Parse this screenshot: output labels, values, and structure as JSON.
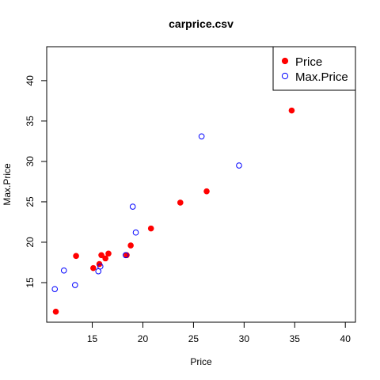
{
  "chart_data": {
    "type": "scatter",
    "title": "carprice.csv",
    "xlabel": "Price",
    "ylabel": "Max.Price",
    "xlim": [
      10.5,
      41
    ],
    "ylim": [
      10.1,
      44.2
    ],
    "x_ticks": [
      15,
      20,
      25,
      30,
      35,
      40
    ],
    "y_ticks": [
      15,
      20,
      25,
      30,
      35,
      40
    ],
    "grid": false,
    "legend_position": "top-right",
    "series": [
      {
        "name": "Price",
        "marker": "filled-circle",
        "color": "#ff0000",
        "points": [
          [
            11.4,
            11.4
          ],
          [
            13.4,
            18.3
          ],
          [
            15.1,
            16.8
          ],
          [
            15.7,
            17.3
          ],
          [
            15.9,
            18.4
          ],
          [
            16.3,
            18.0
          ],
          [
            16.6,
            18.6
          ],
          [
            18.4,
            18.4
          ],
          [
            18.8,
            19.6
          ],
          [
            20.8,
            21.7
          ],
          [
            23.7,
            24.9
          ],
          [
            26.3,
            26.3
          ],
          [
            34.7,
            36.3
          ]
        ]
      },
      {
        "name": "Max.Price",
        "marker": "open-circle",
        "color": "#0000ff",
        "points": [
          [
            11.3,
            14.2
          ],
          [
            12.2,
            16.5
          ],
          [
            13.3,
            14.7
          ],
          [
            15.6,
            16.4
          ],
          [
            15.8,
            17.0
          ],
          [
            18.3,
            18.4
          ],
          [
            19.0,
            24.4
          ],
          [
            19.3,
            21.2
          ],
          [
            25.8,
            33.1
          ],
          [
            29.5,
            29.5
          ]
        ]
      }
    ]
  }
}
